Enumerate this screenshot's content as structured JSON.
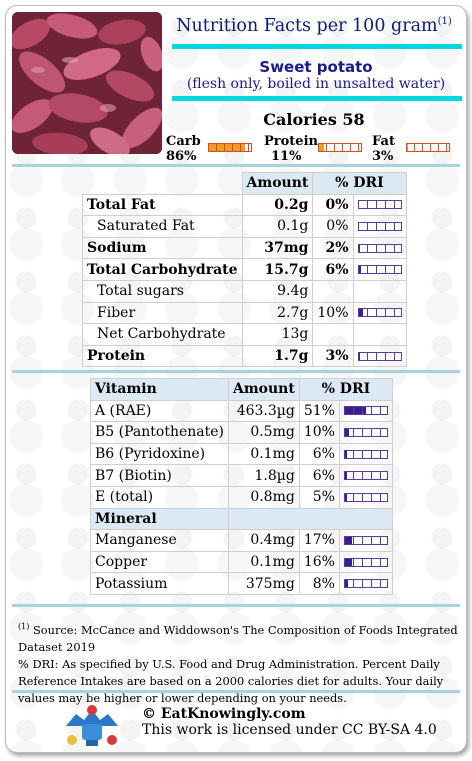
{
  "header": {
    "title": "Nutrition Facts per 100 gram",
    "footnote_ref": "(1)"
  },
  "food": {
    "name": "Sweet potato",
    "description": "(flesh only, boiled in unsalted water)"
  },
  "calories": "Calories 58",
  "macros": [
    {
      "name": "Carb",
      "pct": "86%",
      "value": 86
    },
    {
      "name": "Protein",
      "pct": "11%",
      "value": 11
    },
    {
      "name": "Fat",
      "pct": "3%",
      "value": 3
    }
  ],
  "nutrients": {
    "headers": {
      "amount": "Amount",
      "dri": "% DRI"
    },
    "rows": [
      {
        "name": "Total Fat",
        "amount": "0.2g",
        "dri": "0%",
        "dri_value": 0,
        "bold": true,
        "indent": false,
        "bar": true
      },
      {
        "name": "Saturated Fat",
        "amount": "0.1g",
        "dri": "0%",
        "dri_value": 0,
        "bold": false,
        "indent": true,
        "bar": true
      },
      {
        "name": "Sodium",
        "amount": "37mg",
        "dri": "2%",
        "dri_value": 2,
        "bold": true,
        "indent": false,
        "bar": true
      },
      {
        "name": "Total Carbohydrate",
        "amount": "15.7g",
        "dri": "6%",
        "dri_value": 6,
        "bold": true,
        "indent": false,
        "bar": true
      },
      {
        "name": "Total sugars",
        "amount": "9.4g",
        "dri": "",
        "dri_value": 0,
        "bold": false,
        "indent": true,
        "bar": false
      },
      {
        "name": "Fiber",
        "amount": "2.7g",
        "dri": "10%",
        "dri_value": 10,
        "bold": false,
        "indent": true,
        "bar": true
      },
      {
        "name": "Net Carbohydrate",
        "amount": "13g",
        "dri": "",
        "dri_value": 0,
        "bold": false,
        "indent": true,
        "bar": false
      },
      {
        "name": "Protein",
        "amount": "1.7g",
        "dri": "3%",
        "dri_value": 3,
        "bold": true,
        "indent": false,
        "bar": true
      }
    ]
  },
  "vitamins": {
    "headers": {
      "name": "Vitamin",
      "amount": "Amount",
      "dri": "% DRI"
    },
    "rows": [
      {
        "name": "A (RAE)",
        "amount": "463.3µg",
        "dri": "51%",
        "dri_value": 51
      },
      {
        "name": "B5 (Pantothenate)",
        "amount": "0.5mg",
        "dri": "10%",
        "dri_value": 10
      },
      {
        "name": "B6 (Pyridoxine)",
        "amount": "0.1mg",
        "dri": "6%",
        "dri_value": 6
      },
      {
        "name": "B7 (Biotin)",
        "amount": "1.8µg",
        "dri": "6%",
        "dri_value": 6
      },
      {
        "name": "E (total)",
        "amount": "0.8mg",
        "dri": "5%",
        "dri_value": 5
      }
    ]
  },
  "minerals": {
    "header": "Mineral",
    "rows": [
      {
        "name": "Manganese",
        "amount": "0.4mg",
        "dri": "17%",
        "dri_value": 17
      },
      {
        "name": "Copper",
        "amount": "0.1mg",
        "dri": "16%",
        "dri_value": 16
      },
      {
        "name": "Potassium",
        "amount": "375mg",
        "dri": "8%",
        "dri_value": 8
      }
    ]
  },
  "footer": {
    "ref": "(1)",
    "source": " Source: McCance and Widdowson's The Composition of Foods Integrated Dataset 2019",
    "dri_note": "% DRI: As specified by U.S. Food and Drug Administration. Percent Daily Reference Intakes are based on a 2000 calories diet for adults. Your daily values may be higher or lower depending on your needs.",
    "brand": "© EatKnowingly.com",
    "license": "This work is licensed under CC BY-SA 4.0"
  },
  "colors": {
    "title": "#0b1a78",
    "accent_bar": "#00d8e0",
    "macro_fill": "#f09a28",
    "dri_fill": "#3b1e8c",
    "header_bg": "#dce9f5"
  }
}
